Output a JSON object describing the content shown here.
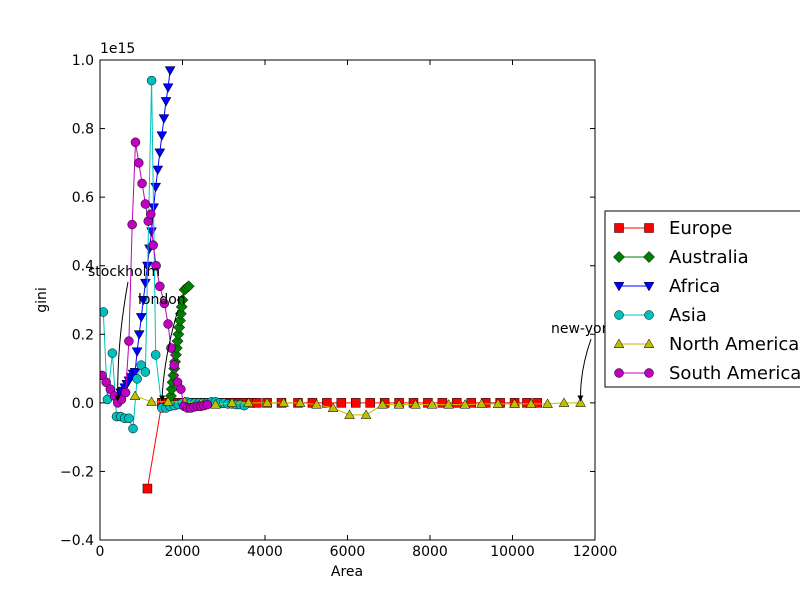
{
  "chart_data": {
    "type": "line",
    "xlabel": "Area",
    "ylabel": "gini",
    "offset_label": "1e15",
    "xlim": [
      0,
      12000
    ],
    "ylim": [
      -0.4,
      1.0
    ],
    "x_ticks": [
      "0",
      "2000",
      "4000",
      "6000",
      "8000",
      "10000",
      "12000"
    ],
    "y_ticks": [
      "−0.4",
      "−0.2",
      "0.0",
      "0.2",
      "0.4",
      "0.6",
      "0.8",
      "1.0"
    ],
    "grid": false,
    "legend_position": "right, outside the plot",
    "series": [
      {
        "name": "Europe",
        "color": "#ff0000",
        "marker": "square",
        "points": [
          [
            1150,
            -0.25
          ],
          [
            1500,
            0.0
          ],
          [
            1550,
            0.0
          ],
          [
            1600,
            0.0
          ],
          [
            1650,
            0.0
          ],
          [
            1700,
            0.0
          ],
          [
            1750,
            0.0
          ],
          [
            1800,
            0.0
          ],
          [
            1850,
            0.0
          ],
          [
            1900,
            0.0
          ],
          [
            1950,
            0.0
          ],
          [
            2000,
            0.0
          ],
          [
            2050,
            0.0
          ],
          [
            2100,
            0.0
          ],
          [
            2150,
            0.0
          ],
          [
            2200,
            0.0
          ],
          [
            2300,
            0.0
          ],
          [
            2400,
            0.0
          ],
          [
            2500,
            0.0
          ],
          [
            2600,
            0.0
          ],
          [
            2700,
            0.0
          ],
          [
            2800,
            0.0
          ],
          [
            2900,
            0.0
          ],
          [
            3000,
            0.0
          ],
          [
            3100,
            0.0
          ],
          [
            3200,
            0.0
          ],
          [
            3300,
            0.0
          ],
          [
            3400,
            0.0
          ],
          [
            3500,
            0.0
          ],
          [
            3650,
            0.0
          ],
          [
            3800,
            0.0
          ],
          [
            4050,
            0.0
          ],
          [
            4400,
            0.0
          ],
          [
            4800,
            0.0
          ],
          [
            5150,
            0.0
          ],
          [
            5500,
            0.0
          ],
          [
            5850,
            0.0
          ],
          [
            6200,
            0.0
          ],
          [
            6550,
            0.0
          ],
          [
            6900,
            0.0
          ],
          [
            7250,
            0.0
          ],
          [
            7600,
            0.0
          ],
          [
            7950,
            0.0
          ],
          [
            8300,
            0.0
          ],
          [
            8650,
            0.0
          ],
          [
            9000,
            0.0
          ],
          [
            9350,
            0.0
          ],
          [
            9700,
            0.0
          ],
          [
            10050,
            0.0
          ],
          [
            10350,
            0.0
          ],
          [
            10600,
            0.0
          ]
        ]
      },
      {
        "name": "Australia",
        "color": "#008000",
        "marker": "diamond",
        "points": [
          [
            1700,
            0.0
          ],
          [
            1720,
            0.02
          ],
          [
            1740,
            0.04
          ],
          [
            1760,
            0.06
          ],
          [
            1780,
            0.08
          ],
          [
            1800,
            0.1
          ],
          [
            1820,
            0.12
          ],
          [
            1840,
            0.14
          ],
          [
            1860,
            0.16
          ],
          [
            1880,
            0.18
          ],
          [
            1900,
            0.2
          ],
          [
            1920,
            0.22
          ],
          [
            1940,
            0.24
          ],
          [
            1960,
            0.26
          ],
          [
            1980,
            0.28
          ],
          [
            2000,
            0.3
          ],
          [
            2050,
            0.33
          ],
          [
            2100,
            0.335
          ],
          [
            2150,
            0.34
          ]
        ]
      },
      {
        "name": "Africa",
        "color": "#0000ff",
        "marker": "triangle-down",
        "points": [
          [
            500,
            0.03
          ],
          [
            550,
            0.035
          ],
          [
            600,
            0.045
          ],
          [
            650,
            0.055
          ],
          [
            700,
            0.065
          ],
          [
            750,
            0.075
          ],
          [
            800,
            0.085
          ],
          [
            850,
            0.09
          ],
          [
            900,
            0.15
          ],
          [
            950,
            0.2
          ],
          [
            1000,
            0.25
          ],
          [
            1050,
            0.3
          ],
          [
            1100,
            0.35
          ],
          [
            1150,
            0.4
          ],
          [
            1200,
            0.45
          ],
          [
            1250,
            0.5
          ],
          [
            1300,
            0.57
          ],
          [
            1350,
            0.63
          ],
          [
            1400,
            0.68
          ],
          [
            1450,
            0.73
          ],
          [
            1500,
            0.78
          ],
          [
            1550,
            0.83
          ],
          [
            1600,
            0.88
          ],
          [
            1650,
            0.92
          ],
          [
            1700,
            0.97
          ]
        ]
      },
      {
        "name": "Asia",
        "color": "#00bfbf",
        "marker": "circle",
        "points": [
          [
            80,
            0.265
          ],
          [
            180,
            0.01
          ],
          [
            300,
            0.145
          ],
          [
            400,
            -0.04
          ],
          [
            500,
            -0.04
          ],
          [
            600,
            -0.045
          ],
          [
            700,
            -0.045
          ],
          [
            800,
            -0.075
          ],
          [
            900,
            0.07
          ],
          [
            1000,
            0.11
          ],
          [
            1100,
            0.09
          ],
          [
            1250,
            0.94
          ],
          [
            1350,
            0.14
          ],
          [
            1500,
            -0.015
          ],
          [
            1600,
            -0.015
          ],
          [
            1700,
            -0.01
          ],
          [
            1800,
            -0.008
          ],
          [
            1900,
            -0.005
          ],
          [
            2000,
            0.0
          ],
          [
            2100,
            0.003
          ],
          [
            2200,
            0.0
          ],
          [
            2300,
            0.0
          ],
          [
            2400,
            0.0
          ],
          [
            2500,
            0.0
          ],
          [
            2600,
            0.0
          ],
          [
            2700,
            0.003
          ],
          [
            2800,
            0.003
          ],
          [
            2900,
            0.0
          ],
          [
            3000,
            0.0
          ],
          [
            3100,
            -0.003
          ],
          [
            3200,
            -0.003
          ],
          [
            3300,
            -0.005
          ],
          [
            3400,
            -0.005
          ],
          [
            3500,
            -0.008
          ]
        ]
      },
      {
        "name": "North America",
        "color": "#bfbf00",
        "marker": "triangle-up",
        "points": [
          [
            850,
            0.02
          ],
          [
            1250,
            0.003
          ],
          [
            1650,
            0.003
          ],
          [
            2050,
            0.003
          ],
          [
            2450,
            0.0
          ],
          [
            2800,
            -0.005
          ],
          [
            3200,
            0.0
          ],
          [
            3600,
            0.0
          ],
          [
            4050,
            0.0
          ],
          [
            4450,
            0.0
          ],
          [
            4850,
            0.0
          ],
          [
            5250,
            -0.005
          ],
          [
            5650,
            -0.015
          ],
          [
            6050,
            -0.035
          ],
          [
            6450,
            -0.035
          ],
          [
            6850,
            -0.005
          ],
          [
            7250,
            -0.005
          ],
          [
            7650,
            -0.005
          ],
          [
            8050,
            -0.005
          ],
          [
            8450,
            -0.005
          ],
          [
            8850,
            -0.005
          ],
          [
            9250,
            -0.003
          ],
          [
            9650,
            -0.003
          ],
          [
            10050,
            -0.003
          ],
          [
            10450,
            -0.003
          ],
          [
            10850,
            -0.003
          ],
          [
            11250,
            0.0
          ],
          [
            11650,
            0.0
          ]
        ]
      },
      {
        "name": "South America",
        "color": "#bf00bf",
        "marker": "circle",
        "points": [
          [
            50,
            0.08
          ],
          [
            150,
            0.06
          ],
          [
            250,
            0.04
          ],
          [
            350,
            0.02
          ],
          [
            430,
            0.0
          ],
          [
            520,
            0.01
          ],
          [
            620,
            0.03
          ],
          [
            700,
            0.18
          ],
          [
            780,
            0.52
          ],
          [
            860,
            0.76
          ],
          [
            940,
            0.7
          ],
          [
            1020,
            0.64
          ],
          [
            1100,
            0.58
          ],
          [
            1170,
            0.53
          ],
          [
            1230,
            0.55
          ],
          [
            1290,
            0.46
          ],
          [
            1360,
            0.4
          ],
          [
            1450,
            0.34
          ],
          [
            1560,
            0.29
          ],
          [
            1650,
            0.23
          ],
          [
            1720,
            0.16
          ],
          [
            1800,
            0.11
          ],
          [
            1880,
            0.06
          ],
          [
            1960,
            0.04
          ],
          [
            2040,
            -0.01
          ],
          [
            2120,
            -0.015
          ],
          [
            2200,
            -0.015
          ],
          [
            2280,
            -0.012
          ],
          [
            2360,
            -0.01
          ],
          [
            2440,
            -0.01
          ],
          [
            2520,
            -0.008
          ],
          [
            2600,
            -0.005
          ]
        ]
      }
    ],
    "annotations": [
      {
        "name": "stockholm",
        "text": "stockholm",
        "point": [
          430,
          0.0
        ]
      },
      {
        "name": "london",
        "text": "london",
        "point": [
          1500,
          0.0
        ]
      },
      {
        "name": "new-york",
        "text": "new-york",
        "point": [
          11650,
          0.0
        ]
      }
    ]
  }
}
